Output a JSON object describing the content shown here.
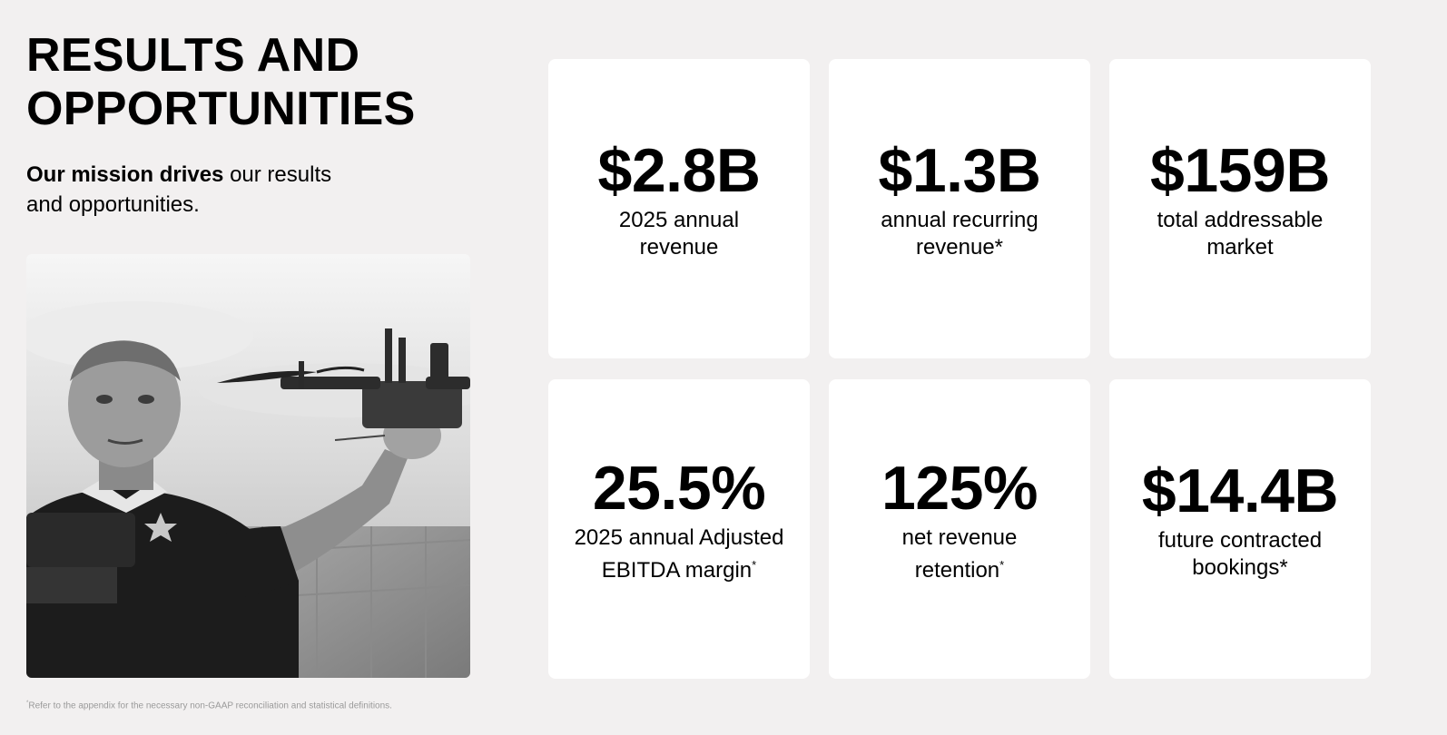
{
  "header": {
    "title_line1": "RESULTS AND",
    "title_line2": "OPPORTUNITIES",
    "subtitle_bold": "Our mission drives",
    "subtitle_rest": " our results",
    "subtitle_line2": "and opportunities."
  },
  "stats": [
    {
      "value": "$2.8B",
      "label_line1": "2025 annual",
      "label_line2": "revenue",
      "mark": ""
    },
    {
      "value": "$1.3B",
      "label_line1": "annual recurring",
      "label_line2": "revenue*",
      "mark": ""
    },
    {
      "value": "$159B",
      "label_line1": "total addressable",
      "label_line2": "market",
      "mark": ""
    },
    {
      "value": "25.5%",
      "label_line1": "2025 annual Adjusted",
      "label_line2": "EBITDA margin",
      "mark": "*"
    },
    {
      "value": "125%",
      "label_line1": "net revenue",
      "label_line2": "retention",
      "mark": "*"
    },
    {
      "value": "$14.4B",
      "label_line1": "future contracted",
      "label_line2": "bookings*",
      "mark": ""
    }
  ],
  "footnote": {
    "mark": "*",
    "text": "Refer to the appendix for the necessary non-GAAP reconciliation and statistical definitions."
  },
  "photo": {
    "icon": "officer-holding-drone-photo"
  }
}
